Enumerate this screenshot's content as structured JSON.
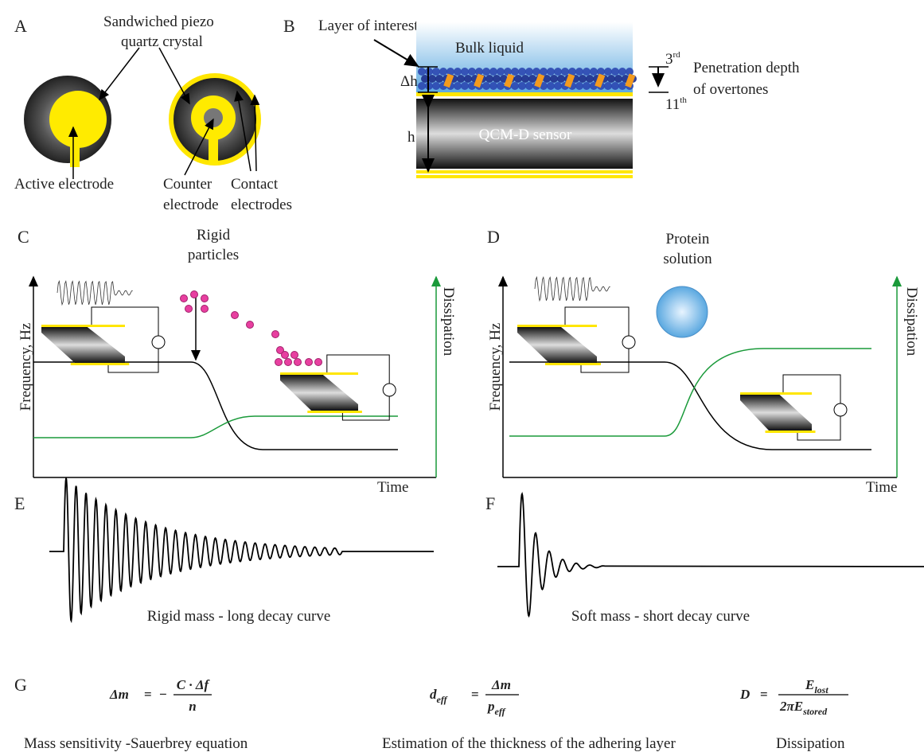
{
  "panels": {
    "a": {
      "label": "A",
      "crystal": [
        "Sandwiched piezo",
        "quartz crystal"
      ],
      "active": "Active electrode",
      "counter": [
        "Counter",
        "electrode"
      ],
      "contact": [
        "Contact",
        "electrodes"
      ]
    },
    "b": {
      "label": "B",
      "layer": "Layer of interest",
      "bulk": "Bulk liquid",
      "dh": "Δh",
      "h": "h",
      "sensor": "QCM-D sensor",
      "o1": "3",
      "o1sup": "rd",
      "o2": "11",
      "o2sup": "th",
      "penetration": [
        "Penetration depth",
        "of overtones"
      ]
    },
    "c": {
      "label": "C",
      "particles": [
        "Rigid",
        "particles"
      ],
      "ylabel": "Frequency, Hz",
      "y2label": "Dissipation",
      "xlabel": "Time"
    },
    "d": {
      "label": "D",
      "solution": [
        "Protein",
        "solution"
      ],
      "ylabel": "Frequency, Hz",
      "y2label": "Dissipation",
      "xlabel": "Time"
    },
    "e": {
      "label": "E",
      "caption": "Rigid mass - long decay curve"
    },
    "f": {
      "label": "F",
      "caption": "Soft mass - short decay curve"
    },
    "g": {
      "label": "G",
      "eq1": {
        "lhs": "Δm",
        "sign": "=",
        "minus": "−",
        "num": "C · Δf",
        "den": "n",
        "caption": "Mass sensitivity -Sauerbrey equation"
      },
      "eq2": {
        "lhs": "d",
        "lhs_sub": "eff",
        "sign": "=",
        "num": "Δm",
        "den": "p",
        "den_sub": "eff",
        "caption": "Estimation of the thickness of the adhering layer"
      },
      "eq3": {
        "lhs": "D",
        "sign": "=",
        "num": "E",
        "num_sub": "lost",
        "den": "2πE",
        "den_sub": "stored",
        "caption": "Dissipation"
      }
    }
  }
}
